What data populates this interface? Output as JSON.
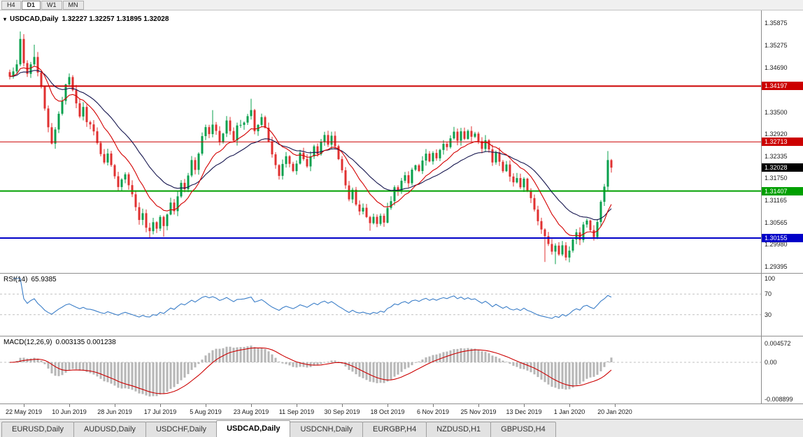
{
  "toolbar": {
    "periods": [
      {
        "label": "H4",
        "active": false
      },
      {
        "label": "D1",
        "active": true
      },
      {
        "label": "W1",
        "active": false
      },
      {
        "label": "MN",
        "active": false
      }
    ]
  },
  "chart_window": {
    "title_icon": "▾",
    "title": "USDCAD,Daily",
    "ohlc_text": "1.32227 1.32257 1.31895 1.32028",
    "price_scale_ticks": [
      "1.35875",
      "1.35275",
      "1.34690",
      "1.33500",
      "1.32920",
      "1.32335",
      "1.31750",
      "1.31165",
      "1.30565",
      "1.29980",
      "1.29395"
    ],
    "level_lines": [
      {
        "label": "1.34197",
        "price": 1.34197,
        "color": "#cc0000",
        "width": 2
      },
      {
        "label": "1.32713",
        "price": 1.32713,
        "color": "#cc0000",
        "width": 1
      },
      {
        "label": "1.31407",
        "price": 1.31407,
        "color": "#00a000",
        "width": 2
      },
      {
        "label": "1.30155",
        "price": 1.30155,
        "color": "#0000c8",
        "width": 2
      }
    ],
    "current_price_badge": {
      "label": "1.32028",
      "price": 1.32028,
      "color": "#000000"
    }
  },
  "rsi_panel": {
    "label": "RSI(14)",
    "value": "65.9385",
    "line_color": "#3b7ec8",
    "levels": [
      70,
      30
    ],
    "scale_labels": [
      {
        "text": "100",
        "v": 100
      },
      {
        "text": "70",
        "v": 70
      },
      {
        "text": "30",
        "v": 30
      }
    ]
  },
  "macd_panel": {
    "label": "MACD(12,26,9)",
    "values_text": "0.003135 0.001238",
    "hist_color": "#b6b6b6",
    "signal_color": "#cc0000",
    "scale_labels": [
      {
        "text": "0.004572",
        "v": 0.004572
      },
      {
        "text": "0.00",
        "v": 0
      },
      {
        "text": "-0.008899",
        "v": -0.008899
      }
    ]
  },
  "date_axis": {
    "labels": [
      "22 May 2019",
      "10 Jun 2019",
      "28 Jun 2019",
      "17 Jul 2019",
      "5 Aug 2019",
      "23 Aug 2019",
      "11 Sep 2019",
      "30 Sep 2019",
      "18 Oct 2019",
      "6 Nov 2019",
      "25 Nov 2019",
      "13 Dec 2019",
      "1 Jan 2020",
      "20 Jan 2020"
    ]
  },
  "bottom_tabs": [
    {
      "label": "EURUSD,Daily",
      "active": false
    },
    {
      "label": "AUDUSD,Daily",
      "active": false
    },
    {
      "label": "USDCHF,Daily",
      "active": false
    },
    {
      "label": "USDCAD,Daily",
      "active": true
    },
    {
      "label": "USDCNH,Daily",
      "active": false
    },
    {
      "label": "EURGBP,H4",
      "active": false
    },
    {
      "label": "NZDUSD,H1",
      "active": false
    },
    {
      "label": "GBPUSD,H4",
      "active": false
    }
  ],
  "chart_data": {
    "type": "candlestick",
    "symbol": "USDCAD",
    "timeframe": "Daily",
    "price_range_visible": [
      1.29395,
      1.35875
    ],
    "last_candle": {
      "o": 1.32227,
      "h": 1.32257,
      "l": 1.31895,
      "c": 1.32028
    },
    "up_color": "#0aa04d",
    "down_color": "#e03030",
    "horizontal_levels": [
      1.34197,
      1.32713,
      1.31407,
      1.30155
    ],
    "moving_averages": [
      {
        "type": "EMA",
        "period": 12,
        "color": "#d40000"
      },
      {
        "type": "EMA",
        "period": 26,
        "color": "#15154e"
      }
    ],
    "indicators": [
      {
        "name": "RSI",
        "period": 14,
        "current": 65.9385
      },
      {
        "name": "MACD",
        "fast": 12,
        "slow": 26,
        "signal": 9,
        "macd": 0.003135,
        "signal_value": 0.001238
      }
    ],
    "candle_path": [
      [
        0,
        1.3445
      ],
      [
        2,
        1.348
      ],
      [
        3,
        1.3545
      ],
      [
        4,
        1.3478
      ],
      [
        5,
        1.345
      ],
      [
        7,
        1.3502
      ],
      [
        8,
        1.346
      ],
      [
        9,
        1.3418
      ],
      [
        10,
        1.336
      ],
      [
        11,
        1.3308
      ],
      [
        12,
        1.3268
      ],
      [
        14,
        1.3342
      ],
      [
        16,
        1.342
      ],
      [
        17,
        1.3438
      ],
      [
        19,
        1.3378
      ],
      [
        20,
        1.3338
      ],
      [
        21,
        1.3362
      ],
      [
        22,
        1.3328
      ],
      [
        24,
        1.3298
      ],
      [
        25,
        1.3268
      ],
      [
        27,
        1.3215
      ],
      [
        28,
        1.3242
      ],
      [
        30,
        1.3178
      ],
      [
        31,
        1.3148
      ],
      [
        33,
        1.319
      ],
      [
        34,
        1.3162
      ],
      [
        36,
        1.3098
      ],
      [
        37,
        1.3062
      ],
      [
        38,
        1.3082
      ],
      [
        39,
        1.3048
      ],
      [
        40,
        1.303
      ],
      [
        41,
        1.3056
      ],
      [
        42,
        1.3038
      ],
      [
        43,
        1.307
      ],
      [
        44,
        1.3046
      ],
      [
        45,
        1.3078
      ],
      [
        46,
        1.311
      ],
      [
        47,
        1.309
      ],
      [
        48,
        1.313
      ],
      [
        49,
        1.316
      ],
      [
        50,
        1.314
      ],
      [
        51,
        1.3183
      ],
      [
        52,
        1.3222
      ],
      [
        53,
        1.3202
      ],
      [
        54,
        1.3243
      ],
      [
        55,
        1.3283
      ],
      [
        56,
        1.331
      ],
      [
        57,
        1.3288
      ],
      [
        58,
        1.332
      ],
      [
        59,
        1.3296
      ],
      [
        60,
        1.327
      ],
      [
        62,
        1.3328
      ],
      [
        63,
        1.33
      ],
      [
        64,
        1.328
      ],
      [
        65,
        1.331
      ],
      [
        67,
        1.332
      ],
      [
        68,
        1.334
      ],
      [
        69,
        1.335
      ],
      [
        70,
        1.3295
      ],
      [
        71,
        1.3316
      ],
      [
        72,
        1.3338
      ],
      [
        73,
        1.3303
      ],
      [
        74,
        1.3268
      ],
      [
        75,
        1.3238
      ],
      [
        76,
        1.3208
      ],
      [
        77,
        1.3183
      ],
      [
        78,
        1.3208
      ],
      [
        79,
        1.3238
      ],
      [
        80,
        1.3213
      ],
      [
        81,
        1.3188
      ],
      [
        82,
        1.3218
      ],
      [
        83,
        1.3248
      ],
      [
        84,
        1.3228
      ],
      [
        85,
        1.3203
      ],
      [
        86,
        1.3233
      ],
      [
        87,
        1.326
      ],
      [
        88,
        1.3238
      ],
      [
        89,
        1.3268
      ],
      [
        90,
        1.3286
      ],
      [
        91,
        1.3266
      ],
      [
        92,
        1.329
      ],
      [
        93,
        1.3262
      ],
      [
        94,
        1.323
      ],
      [
        95,
        1.3198
      ],
      [
        96,
        1.3158
      ],
      [
        97,
        1.3122
      ],
      [
        98,
        1.3148
      ],
      [
        99,
        1.3108
      ],
      [
        100,
        1.3082
      ],
      [
        101,
        1.3102
      ],
      [
        102,
        1.3068
      ],
      [
        103,
        1.3052
      ],
      [
        104,
        1.3072
      ],
      [
        105,
        1.305
      ],
      [
        106,
        1.3078
      ],
      [
        107,
        1.3058
      ],
      [
        108,
        1.309
      ],
      [
        109,
        1.3118
      ],
      [
        110,
        1.3152
      ],
      [
        111,
        1.3138
      ],
      [
        112,
        1.3168
      ],
      [
        113,
        1.3188
      ],
      [
        114,
        1.3162
      ],
      [
        115,
        1.3192
      ],
      [
        116,
        1.3212
      ],
      [
        117,
        1.3192
      ],
      [
        118,
        1.3218
      ],
      [
        119,
        1.3238
      ],
      [
        120,
        1.322
      ],
      [
        121,
        1.3245
      ],
      [
        122,
        1.3228
      ],
      [
        123,
        1.3252
      ],
      [
        124,
        1.3272
      ],
      [
        125,
        1.3255
      ],
      [
        126,
        1.3275
      ],
      [
        127,
        1.3295
      ],
      [
        128,
        1.3278
      ],
      [
        129,
        1.3298
      ],
      [
        130,
        1.3283
      ],
      [
        131,
        1.3302
      ],
      [
        132,
        1.3288
      ],
      [
        133,
        1.3298
      ],
      [
        134,
        1.3278
      ],
      [
        135,
        1.3253
      ],
      [
        136,
        1.3272
      ],
      [
        137,
        1.3248
      ],
      [
        138,
        1.3222
      ],
      [
        139,
        1.3242
      ],
      [
        140,
        1.3215
      ],
      [
        141,
        1.319
      ],
      [
        142,
        1.321
      ],
      [
        143,
        1.3182
      ],
      [
        144,
        1.3158
      ],
      [
        145,
        1.3175
      ],
      [
        146,
        1.315
      ],
      [
        147,
        1.3168
      ],
      [
        148,
        1.3142
      ],
      [
        149,
        1.3118
      ],
      [
        150,
        1.3092
      ],
      [
        151,
        1.3066
      ],
      [
        152,
        1.3042
      ],
      [
        153,
        1.3018
      ],
      [
        154,
        1.2995
      ],
      [
        155,
        1.2975
      ],
      [
        156,
        1.2998
      ],
      [
        157,
        1.297
      ],
      [
        158,
        1.2992
      ],
      [
        159,
        1.2962
      ],
      [
        160,
        1.2988
      ],
      [
        161,
        1.3012
      ],
      [
        162,
        1.3036
      ],
      [
        163,
        1.3016
      ],
      [
        164,
        1.3046
      ],
      [
        165,
        1.3062
      ],
      [
        166,
        1.304
      ],
      [
        167,
        1.3022
      ],
      [
        168,
        1.3062
      ],
      [
        169,
        1.3108
      ],
      [
        170,
        1.3155
      ],
      [
        171,
        1.3223
      ],
      [
        172,
        1.32028
      ]
    ],
    "spikes": [
      {
        "i": 3,
        "h": 1.3565
      },
      {
        "i": 7,
        "h": 1.353
      },
      {
        "i": 58,
        "h": 1.3356
      },
      {
        "i": 69,
        "h": 1.3386
      },
      {
        "i": 40,
        "l": 1.3016
      },
      {
        "i": 44,
        "l": 1.3019
      },
      {
        "i": 103,
        "l": 1.3035
      },
      {
        "i": 153,
        "l": 1.2952
      },
      {
        "i": 156,
        "l": 1.2946
      },
      {
        "i": 159,
        "l": 1.2956
      },
      {
        "i": 171,
        "h": 1.3247
      }
    ]
  }
}
